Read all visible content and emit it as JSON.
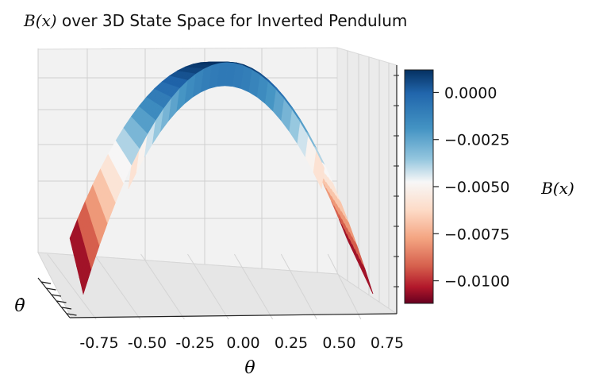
{
  "title": {
    "math": "B(x)",
    "text": " over 3D State Space for Inverted Pendulum"
  },
  "chart_data": {
    "type": "surface",
    "title": "B(x) over 3D State Space for Inverted Pendulum",
    "xlabel": "θ",
    "ylabel": "θ̇",
    "colorbar_label": "B(x)",
    "colormap": "RdBu",
    "x_ticks": [
      "-0.75",
      "-0.50",
      "-0.25",
      "0.00",
      "0.25",
      "0.50",
      "0.75"
    ],
    "colorbar_ticks": [
      "0.0000",
      "−0.0025",
      "−0.0050",
      "−0.0075",
      "−0.0100"
    ],
    "colorbar_tick_values": [
      0.0,
      -0.0025,
      -0.005,
      -0.0075,
      -0.01
    ],
    "colorbar_range": [
      -0.0112,
      0.0012
    ],
    "x_range": [
      -0.8,
      0.8
    ],
    "surface_peak": 0.0012,
    "surface_min": -0.0112
  }
}
